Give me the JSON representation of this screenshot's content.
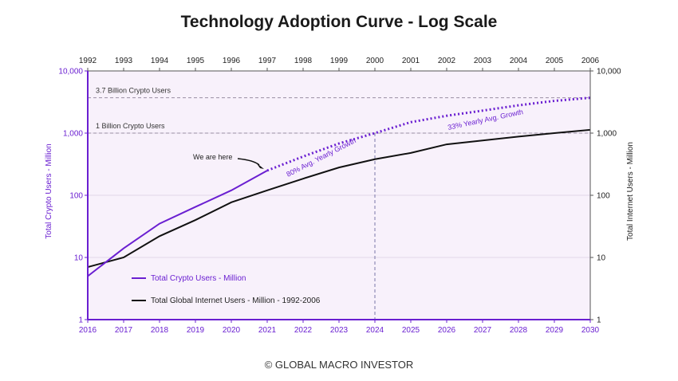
{
  "title": "Technology Adoption Curve - Log Scale",
  "footer": "© GLOBAL MACRO INVESTOR",
  "colors": {
    "crypto": "#6a1fd1",
    "internet": "#111111",
    "plot_bg": "#f8f1fb",
    "axis_purple": "#6a1fd1"
  },
  "chart_data": {
    "type": "line",
    "title": "Technology Adoption Curve - Log Scale",
    "y_scale": "log",
    "ylim": [
      1,
      10000
    ],
    "y_ticks": [
      "1",
      "10",
      "100",
      "1,000",
      "10,000"
    ],
    "ylabel_left": "Total Crypto Users - Million",
    "ylabel_right": "Total Internet Users - Million",
    "x_bottom": {
      "range": [
        2016,
        2030
      ],
      "ticks": [
        "2016",
        "2017",
        "2018",
        "2019",
        "2020",
        "2021",
        "2022",
        "2023",
        "2024",
        "2025",
        "2026",
        "2027",
        "2028",
        "2029",
        "2030"
      ]
    },
    "x_top": {
      "range": [
        1992,
        2006
      ],
      "ticks": [
        "1992",
        "1993",
        "1994",
        "1995",
        "1996",
        "1997",
        "1998",
        "1999",
        "2000",
        "2001",
        "2002",
        "2003",
        "2004",
        "2005",
        "2006"
      ]
    },
    "legend_position": "bottom-left",
    "series": [
      {
        "name": "Total Crypto Users - Million",
        "axis": "bottom",
        "color": "#6a1fd1",
        "actual": {
          "x": [
            2016,
            2017,
            2018,
            2019,
            2020,
            2021
          ],
          "y": [
            5,
            14,
            35,
            65,
            120,
            250
          ]
        },
        "projected": {
          "x": [
            2021,
            2022,
            2023,
            2024,
            2025,
            2026,
            2027,
            2028,
            2029,
            2030
          ],
          "y": [
            250,
            420,
            680,
            1000,
            1500,
            1900,
            2300,
            2800,
            3300,
            3700
          ]
        }
      },
      {
        "name": "Total Global Internet Users - Million - 1992-2006",
        "axis": "top",
        "color": "#111111",
        "x": [
          1992,
          1993,
          1994,
          1995,
          1996,
          1997,
          1998,
          1999,
          2000,
          2001,
          2002,
          2003,
          2004,
          2005,
          2006
        ],
        "y": [
          7,
          10,
          22,
          40,
          77,
          120,
          185,
          280,
          380,
          480,
          660,
          760,
          880,
          1000,
          1130
        ]
      }
    ],
    "reference_lines": [
      {
        "y": 3700,
        "label": "3.7 Billion Crypto Users"
      },
      {
        "y": 1000,
        "label": "1 Billion Crypto Users"
      }
    ],
    "vertical_reference": {
      "x_bottom": 2024
    },
    "annotations": [
      {
        "text": "We are here",
        "target_x": 2021,
        "target_y": 250
      },
      {
        "text": "80% Avg. Yearly Growth"
      },
      {
        "text": "33% Yearly Avg. Growth"
      }
    ]
  }
}
